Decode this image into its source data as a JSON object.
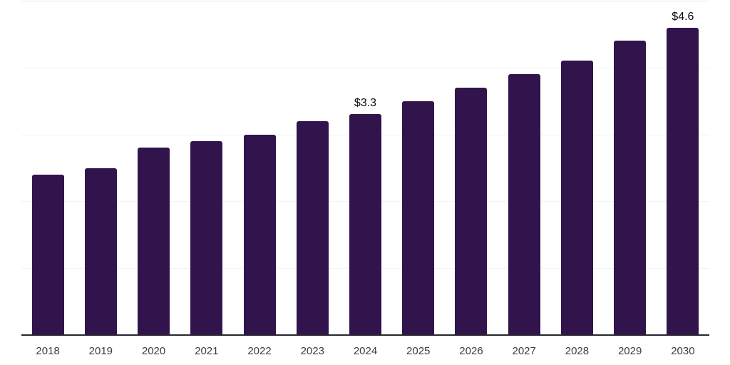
{
  "chart_data": {
    "type": "bar",
    "title": "",
    "xlabel": "",
    "ylabel": "",
    "categories": [
      "2018",
      "2019",
      "2020",
      "2021",
      "2022",
      "2023",
      "2024",
      "2025",
      "2026",
      "2027",
      "2028",
      "2029",
      "2030"
    ],
    "values": [
      2.4,
      2.5,
      2.8,
      2.9,
      3.0,
      3.2,
      3.3,
      3.5,
      3.7,
      3.9,
      4.1,
      4.4,
      4.6
    ],
    "data_labels": [
      "",
      "",
      "",
      "",
      "",
      "",
      "$3.3",
      "",
      "",
      "",
      "",
      "",
      "$4.6"
    ],
    "ylim": [
      0,
      5
    ],
    "gridline_values": [
      1,
      2,
      3,
      4,
      5
    ],
    "grid": "horizontal",
    "legend": "none",
    "colors": {
      "bar": "#32144c",
      "axis_line": "#27272e",
      "tick_label": "#3c3c3c",
      "data_label": "#0b0b0b",
      "gridline": "#f3f3f3",
      "top_gridline": "#e9e9e9",
      "background": "#ffffff"
    }
  }
}
